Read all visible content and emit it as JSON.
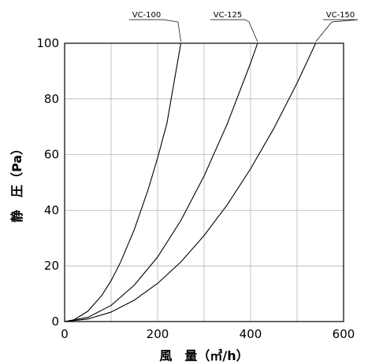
{
  "chart_data": {
    "type": "line",
    "xlabel": "風　量（㎥/h）",
    "ylabel": "静　圧（Pa）",
    "xlim": [
      0,
      600
    ],
    "ylim": [
      0,
      100
    ],
    "x_ticks": [
      "0",
      "200",
      "400",
      "600"
    ],
    "y_ticks": [
      "0",
      "20",
      "40",
      "60",
      "80",
      "100"
    ],
    "grid": true,
    "series": [
      {
        "name": "VC-100",
        "x": [
          0,
          20,
          50,
          80,
          100,
          120,
          150,
          180,
          200,
          220,
          250
        ],
        "y": [
          0,
          0.6,
          3.7,
          9.4,
          14.7,
          21.2,
          33.1,
          47.6,
          58.8,
          71.2,
          100
        ]
      },
      {
        "name": "VC-125",
        "x": [
          0,
          50,
          100,
          150,
          200,
          250,
          300,
          350,
          400,
          415
        ],
        "y": [
          0,
          1.5,
          5.8,
          13.1,
          23.2,
          36.3,
          52.3,
          71.1,
          92.9,
          100
        ]
      },
      {
        "name": "VC-150",
        "x": [
          0,
          50,
          100,
          150,
          200,
          250,
          300,
          350,
          400,
          450,
          500,
          540
        ],
        "y": [
          0,
          0.9,
          3.4,
          7.7,
          13.7,
          21.4,
          30.9,
          42.0,
          54.9,
          69.4,
          85.7,
          100
        ]
      }
    ]
  }
}
